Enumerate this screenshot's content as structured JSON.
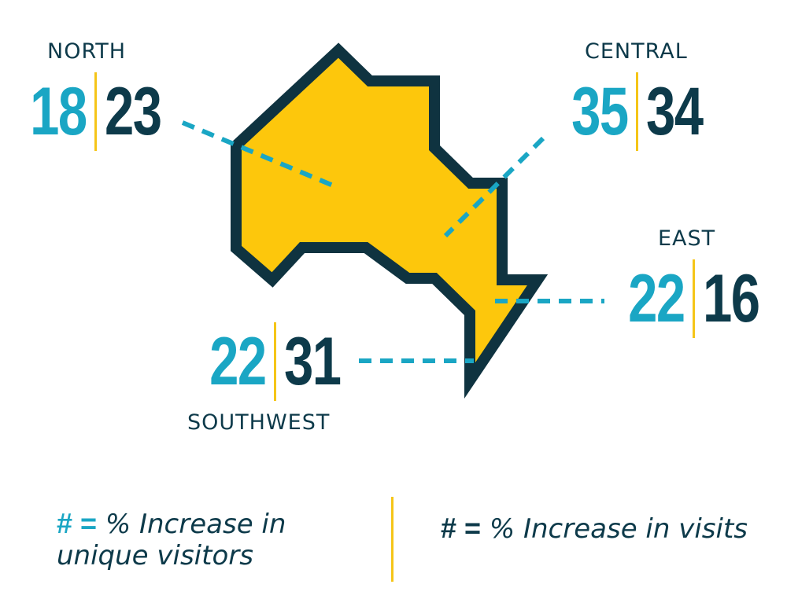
{
  "regions": {
    "north": {
      "name": "NORTH",
      "visitors": "18",
      "visits": "23"
    },
    "central": {
      "name": "CENTRAL",
      "visitors": "35",
      "visits": "34"
    },
    "east": {
      "name": "EAST",
      "visitors": "22",
      "visits": "16"
    },
    "southwest": {
      "name": "SOUTHWEST",
      "visitors": "22",
      "visits": "31"
    }
  },
  "legend": {
    "visitors": {
      "symbol": "# =",
      "text": "% Increase in unique visitors"
    },
    "visits": {
      "symbol": "# =",
      "text": "% Increase in visits"
    }
  },
  "colors": {
    "visitors": "#1aa6c4",
    "visits": "#0d3a4a",
    "map_fill": "#fdc70c",
    "map_outline": "#0f3340",
    "divider": "#f5c518"
  }
}
